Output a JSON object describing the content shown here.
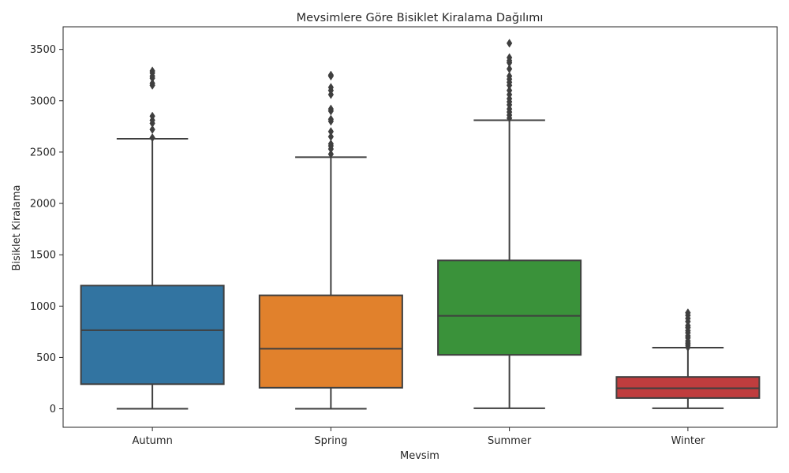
{
  "chart_data": {
    "type": "box",
    "title": "Mevsimlere Göre Bisiklet Kiralama Dağılımı",
    "xlabel": "Mevsim",
    "ylabel": "Bisiklet Kiralama",
    "ylim": [
      -180,
      3720
    ],
    "yticks": [
      0,
      500,
      1000,
      1500,
      2000,
      2500,
      3000,
      3500
    ],
    "grid": false,
    "categories": [
      "Autumn",
      "Spring",
      "Summer",
      "Winter"
    ],
    "boxes": [
      {
        "category": "Autumn",
        "color": "#3274a1",
        "whisker_low": 0,
        "q1": 240,
        "median": 765,
        "q3": 1200,
        "whisker_high": 2630,
        "outliers": [
          2640,
          2720,
          2780,
          2810,
          2850,
          3150,
          3170,
          3220,
          3240,
          3270,
          3290
        ]
      },
      {
        "category": "Spring",
        "color": "#e1812c",
        "whisker_low": 0,
        "q1": 205,
        "median": 585,
        "q3": 1105,
        "whisker_high": 2450,
        "outliers": [
          2480,
          2530,
          2560,
          2580,
          2650,
          2700,
          2800,
          2820,
          2900,
          2920,
          3060,
          3100,
          3130,
          3240,
          3250
        ]
      },
      {
        "category": "Summer",
        "color": "#3a923a",
        "whisker_low": 5,
        "q1": 525,
        "median": 905,
        "q3": 1445,
        "whisker_high": 2810,
        "outliers": [
          2830,
          2860,
          2890,
          2920,
          2960,
          2990,
          3020,
          3060,
          3100,
          3150,
          3180,
          3210,
          3240,
          3310,
          3370,
          3390,
          3420,
          3560
        ]
      },
      {
        "category": "Winter",
        "color": "#c03d3e",
        "whisker_low": 5,
        "q1": 105,
        "median": 200,
        "q3": 310,
        "whisker_high": 595,
        "outliers": [
          600,
          620,
          640,
          660,
          690,
          710,
          740,
          760,
          790,
          810,
          850,
          880,
          910,
          935
        ]
      }
    ]
  }
}
